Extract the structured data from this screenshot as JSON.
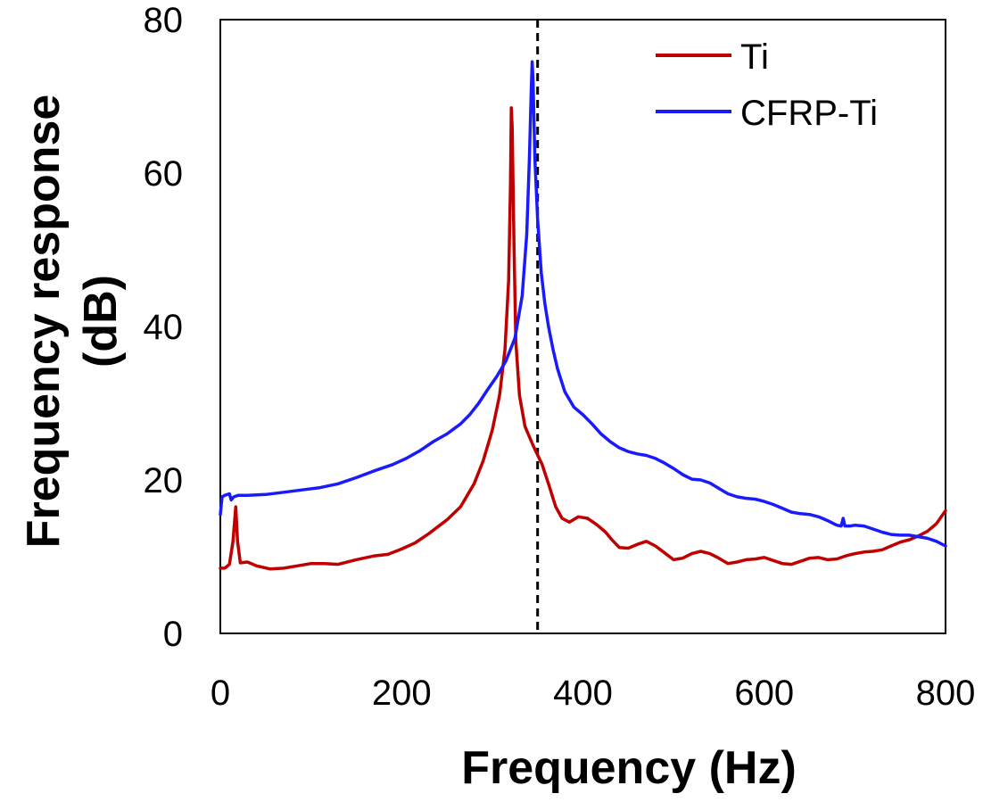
{
  "chart_data": {
    "type": "line",
    "xlabel": "Frequency (Hz)",
    "ylabel_lines": [
      "Frequency response",
      "(dB)"
    ],
    "xlim": [
      0,
      800
    ],
    "ylim": [
      0,
      80
    ],
    "xticks": [
      0,
      200,
      400,
      600,
      800
    ],
    "yticks": [
      0,
      20,
      40,
      60,
      80
    ],
    "grid": false,
    "legend_position": "top-right",
    "reference_line": {
      "x": 350,
      "style": "dashed",
      "color": "#000000"
    },
    "series": [
      {
        "name": "Ti",
        "color": "#c00000",
        "points": [
          [
            0,
            8.5
          ],
          [
            5,
            8.5
          ],
          [
            10,
            9
          ],
          [
            14,
            12
          ],
          [
            17,
            16.5
          ],
          [
            19,
            12
          ],
          [
            22,
            9.2
          ],
          [
            30,
            9.3
          ],
          [
            40,
            8.8
          ],
          [
            55,
            8.4
          ],
          [
            70,
            8.5
          ],
          [
            85,
            8.8
          ],
          [
            100,
            9.1
          ],
          [
            115,
            9.1
          ],
          [
            130,
            9.0
          ],
          [
            150,
            9.6
          ],
          [
            170,
            10.1
          ],
          [
            185,
            10.3
          ],
          [
            200,
            11
          ],
          [
            215,
            11.8
          ],
          [
            230,
            13
          ],
          [
            250,
            14.8
          ],
          [
            265,
            16.5
          ],
          [
            280,
            19.5
          ],
          [
            290,
            22.5
          ],
          [
            300,
            26.5
          ],
          [
            308,
            31
          ],
          [
            314,
            37
          ],
          [
            318,
            46
          ],
          [
            320,
            58
          ],
          [
            321,
            68.5
          ],
          [
            322,
            66
          ],
          [
            324,
            50
          ],
          [
            326,
            38
          ],
          [
            330,
            31
          ],
          [
            336,
            27
          ],
          [
            345,
            24.5
          ],
          [
            355,
            22
          ],
          [
            362,
            19.5
          ],
          [
            370,
            16.5
          ],
          [
            377,
            15
          ],
          [
            385,
            14.5
          ],
          [
            395,
            15.2
          ],
          [
            405,
            15.0
          ],
          [
            415,
            14.2
          ],
          [
            425,
            13.2
          ],
          [
            432,
            12.2
          ],
          [
            440,
            11.2
          ],
          [
            450,
            11.1
          ],
          [
            460,
            11.6
          ],
          [
            470,
            12.0
          ],
          [
            480,
            11.4
          ],
          [
            490,
            10.5
          ],
          [
            500,
            9.6
          ],
          [
            510,
            9.8
          ],
          [
            520,
            10.4
          ],
          [
            530,
            10.7
          ],
          [
            540,
            10.4
          ],
          [
            550,
            9.8
          ],
          [
            560,
            9.1
          ],
          [
            570,
            9.3
          ],
          [
            580,
            9.6
          ],
          [
            590,
            9.7
          ],
          [
            600,
            9.9
          ],
          [
            610,
            9.5
          ],
          [
            620,
            9.1
          ],
          [
            630,
            9.0
          ],
          [
            640,
            9.4
          ],
          [
            650,
            9.8
          ],
          [
            660,
            9.9
          ],
          [
            670,
            9.6
          ],
          [
            680,
            9.7
          ],
          [
            690,
            10.1
          ],
          [
            700,
            10.4
          ],
          [
            710,
            10.6
          ],
          [
            720,
            10.7
          ],
          [
            730,
            10.9
          ],
          [
            740,
            11.4
          ],
          [
            750,
            11.9
          ],
          [
            760,
            12.2
          ],
          [
            770,
            12.7
          ],
          [
            780,
            13.3
          ],
          [
            790,
            14.3
          ],
          [
            800,
            16.0
          ]
        ]
      },
      {
        "name": "CFRP-Ti",
        "color": "#1a1aff",
        "points": [
          [
            0,
            15.5
          ],
          [
            2,
            17.8
          ],
          [
            5,
            18.0
          ],
          [
            10,
            18.2
          ],
          [
            12,
            17.4
          ],
          [
            15,
            17.8
          ],
          [
            20,
            18.0
          ],
          [
            30,
            18.0
          ],
          [
            50,
            18.1
          ],
          [
            70,
            18.4
          ],
          [
            90,
            18.7
          ],
          [
            110,
            19.0
          ],
          [
            130,
            19.5
          ],
          [
            150,
            20.3
          ],
          [
            170,
            21.2
          ],
          [
            190,
            22.0
          ],
          [
            205,
            22.8
          ],
          [
            220,
            23.8
          ],
          [
            235,
            25.0
          ],
          [
            250,
            26.0
          ],
          [
            265,
            27.3
          ],
          [
            275,
            28.5
          ],
          [
            285,
            30.0
          ],
          [
            295,
            31.8
          ],
          [
            305,
            33.5
          ],
          [
            315,
            35.5
          ],
          [
            325,
            38.5
          ],
          [
            333,
            44
          ],
          [
            338,
            52
          ],
          [
            341,
            62
          ],
          [
            343,
            71
          ],
          [
            344,
            74.5
          ],
          [
            345,
            72
          ],
          [
            347,
            62
          ],
          [
            350,
            54
          ],
          [
            354,
            47
          ],
          [
            358,
            43
          ],
          [
            362,
            40
          ],
          [
            367,
            37
          ],
          [
            372,
            34.5
          ],
          [
            380,
            31.5
          ],
          [
            390,
            29.5
          ],
          [
            400,
            28.5
          ],
          [
            410,
            27.3
          ],
          [
            420,
            26
          ],
          [
            430,
            25
          ],
          [
            440,
            24.2
          ],
          [
            450,
            23.7
          ],
          [
            460,
            23.4
          ],
          [
            470,
            23.2
          ],
          [
            480,
            22.8
          ],
          [
            490,
            22.2
          ],
          [
            500,
            21.5
          ],
          [
            510,
            20.7
          ],
          [
            520,
            20.1
          ],
          [
            530,
            20.0
          ],
          [
            540,
            19.6
          ],
          [
            550,
            18.9
          ],
          [
            560,
            18.2
          ],
          [
            570,
            17.8
          ],
          [
            580,
            17.6
          ],
          [
            590,
            17.5
          ],
          [
            600,
            17.2
          ],
          [
            610,
            16.8
          ],
          [
            620,
            16.3
          ],
          [
            630,
            15.8
          ],
          [
            640,
            15.6
          ],
          [
            650,
            15.5
          ],
          [
            660,
            15.2
          ],
          [
            670,
            14.7
          ],
          [
            680,
            14.1
          ],
          [
            685,
            14.0
          ],
          [
            687,
            15.0
          ],
          [
            689,
            14.0
          ],
          [
            695,
            14.0
          ],
          [
            700,
            14.1
          ],
          [
            710,
            14.0
          ],
          [
            720,
            13.6
          ],
          [
            730,
            13.2
          ],
          [
            740,
            12.9
          ],
          [
            750,
            12.8
          ],
          [
            760,
            12.8
          ],
          [
            770,
            12.6
          ],
          [
            780,
            12.4
          ],
          [
            790,
            12.0
          ],
          [
            800,
            11.4
          ]
        ]
      }
    ]
  }
}
